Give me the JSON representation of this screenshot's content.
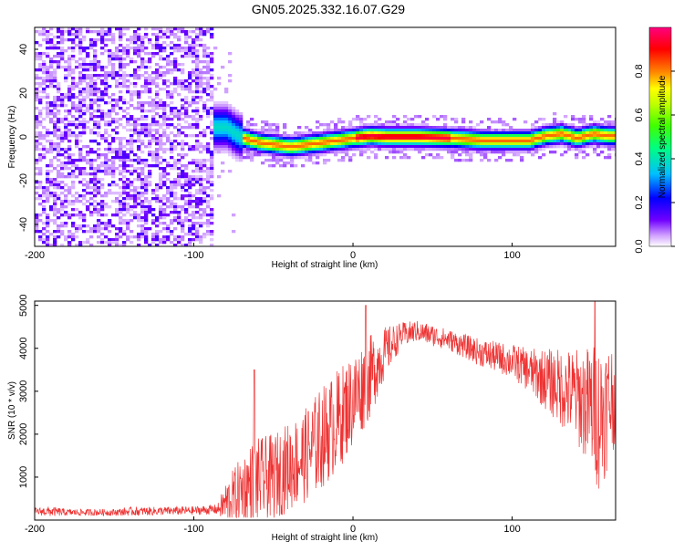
{
  "page_title": "GN05.2025.332.16.07.G29",
  "chart_data": [
    {
      "type": "heatmap",
      "title": "GN05.2025.332.16.07.G29",
      "xlabel": "Height of straight line (km)",
      "ylabel": "Frequency (Hz)",
      "xlim": [
        -200,
        165
      ],
      "ylim": [
        -50,
        50
      ],
      "x_ticks": [
        -200,
        -100,
        0,
        100
      ],
      "y_ticks": [
        -40,
        -20,
        0,
        20,
        40
      ],
      "colorbar": {
        "label": "Normalized spectral amplitude",
        "range": [
          0,
          1
        ],
        "ticks": [
          0.0,
          0.2,
          0.4,
          0.6,
          0.8
        ],
        "tick_labels": [
          "0.0",
          "0.2",
          "0.4",
          "0.6",
          "0.8"
        ],
        "colors": [
          "#ffffff",
          "#c080ff",
          "#6000ff",
          "#0000ff",
          "#00c0ff",
          "#00ff80",
          "#80ff00",
          "#ffff00",
          "#ff8000",
          "#ff0000",
          "#ff0080"
        ]
      },
      "noise_region_x": [
        -200,
        -88
      ],
      "ridge": [
        {
          "x": -88,
          "f": 5
        },
        {
          "x": -80,
          "f": 5
        },
        {
          "x": -75,
          "f": 2
        },
        {
          "x": -70,
          "f": 0
        },
        {
          "x": -60,
          "f": -2
        },
        {
          "x": -50,
          "f": -3
        },
        {
          "x": -40,
          "f": -4
        },
        {
          "x": -30,
          "f": -3
        },
        {
          "x": -20,
          "f": -2
        },
        {
          "x": -10,
          "f": -1
        },
        {
          "x": 0,
          "f": 0
        },
        {
          "x": 10,
          "f": 1
        },
        {
          "x": 20,
          "f": 0.5
        },
        {
          "x": 40,
          "f": 0.5
        },
        {
          "x": 60,
          "f": 0
        },
        {
          "x": 80,
          "f": -1
        },
        {
          "x": 100,
          "f": -1
        },
        {
          "x": 110,
          "f": -1
        },
        {
          "x": 120,
          "f": 1
        },
        {
          "x": 130,
          "f": 2
        },
        {
          "x": 140,
          "f": 0
        },
        {
          "x": 150,
          "f": 2
        },
        {
          "x": 160,
          "f": 1
        },
        {
          "x": 165,
          "f": 1
        }
      ],
      "grid": false
    },
    {
      "type": "line",
      "xlabel": "Height of straight line (km)",
      "ylabel": "SNR (10 * v/v)",
      "xlim": [
        -200,
        165
      ],
      "ylim": [
        0,
        5100
      ],
      "x_ticks": [
        -200,
        -100,
        0,
        100
      ],
      "y_ticks": [
        1000,
        2000,
        3000,
        4000,
        5000
      ],
      "color": "#ee3333",
      "envelope": [
        {
          "x": -200,
          "base": 200,
          "amp": 80
        },
        {
          "x": -190,
          "base": 200,
          "amp": 120
        },
        {
          "x": -180,
          "base": 180,
          "amp": 80
        },
        {
          "x": -150,
          "base": 180,
          "amp": 80
        },
        {
          "x": -140,
          "base": 200,
          "amp": 100
        },
        {
          "x": -100,
          "base": 220,
          "amp": 100
        },
        {
          "x": -85,
          "base": 250,
          "amp": 120
        },
        {
          "x": -80,
          "base": 400,
          "amp": 500
        },
        {
          "x": -70,
          "base": 700,
          "amp": 800
        },
        {
          "x": -62,
          "base": 900,
          "amp": 1000
        },
        {
          "x": -50,
          "base": 1000,
          "amp": 1000
        },
        {
          "x": -30,
          "base": 1500,
          "amp": 1100
        },
        {
          "x": -20,
          "base": 1900,
          "amp": 1200
        },
        {
          "x": -10,
          "base": 2300,
          "amp": 1200
        },
        {
          "x": 0,
          "base": 2800,
          "amp": 1100
        },
        {
          "x": 10,
          "base": 3300,
          "amp": 1000
        },
        {
          "x": 20,
          "base": 3900,
          "amp": 600
        },
        {
          "x": 30,
          "base": 4300,
          "amp": 300
        },
        {
          "x": 40,
          "base": 4400,
          "amp": 250
        },
        {
          "x": 50,
          "base": 4300,
          "amp": 250
        },
        {
          "x": 60,
          "base": 4200,
          "amp": 250
        },
        {
          "x": 70,
          "base": 4050,
          "amp": 280
        },
        {
          "x": 80,
          "base": 3900,
          "amp": 320
        },
        {
          "x": 100,
          "base": 3700,
          "amp": 400
        },
        {
          "x": 110,
          "base": 3500,
          "amp": 500
        },
        {
          "x": 120,
          "base": 3300,
          "amp": 700
        },
        {
          "x": 130,
          "base": 3100,
          "amp": 900
        },
        {
          "x": 140,
          "base": 2900,
          "amp": 1100
        },
        {
          "x": 150,
          "base": 2600,
          "amp": 1500
        },
        {
          "x": 155,
          "base": 2400,
          "amp": 1800
        },
        {
          "x": 160,
          "base": 2700,
          "amp": 1500
        },
        {
          "x": 165,
          "base": 3000,
          "amp": 1200
        }
      ],
      "peaks": [
        {
          "x": -62,
          "y": 3500
        },
        {
          "x": 8,
          "y": 5000
        },
        {
          "x": 152,
          "y": 5100
        }
      ],
      "grid": false
    }
  ]
}
